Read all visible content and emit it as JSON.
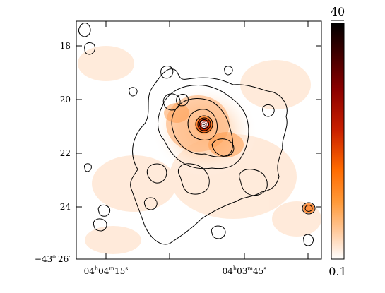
{
  "figure": {
    "kind": "astronomical intensity map with contours",
    "colormap": "white-orange-red-black",
    "contour_color": "#000000",
    "peak_contour_color": "#ffffff"
  },
  "axes": {
    "y_ticks": [
      {
        "value": 18,
        "label": "18"
      },
      {
        "value": 20,
        "label": "20"
      },
      {
        "value": 22,
        "label": "22"
      },
      {
        "value": 24,
        "label": "24"
      },
      {
        "value": 26,
        "label": "26′",
        "prefix": "−43",
        "prefix_sup": "o"
      }
    ],
    "x_ticks": [
      {
        "label_main": "04",
        "h": "h",
        "mid": "04",
        "m": "m",
        "end": "15",
        "s": "s"
      },
      {
        "label_main": "04",
        "h": "h",
        "mid": "03",
        "m": "m",
        "end": "45",
        "s": "s"
      }
    ]
  },
  "colorbar": {
    "max_label": "40",
    "min_label": "0.1",
    "stops": [
      "#000000",
      "#3a0000",
      "#8b0000",
      "#c81e00",
      "#ff6a00",
      "#ff9a3a",
      "#ffc89a",
      "#ffe8d6",
      "#ffffff"
    ]
  }
}
